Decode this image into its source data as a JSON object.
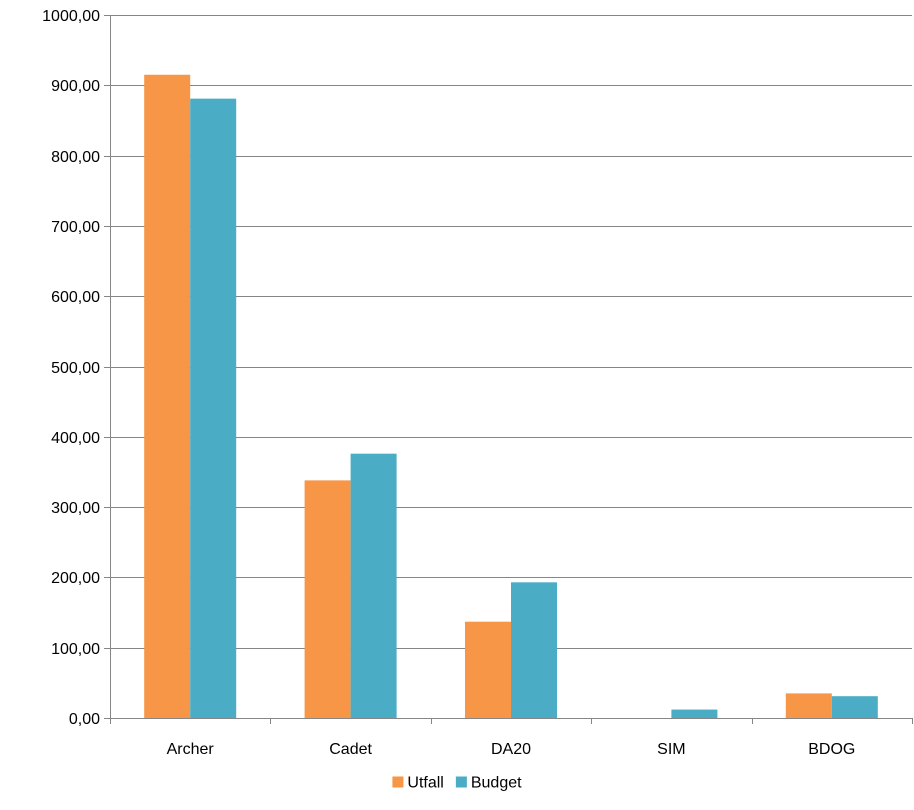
{
  "chart_data": {
    "type": "bar",
    "title": "",
    "xlabel": "",
    "ylabel": "",
    "categories": [
      "Archer",
      "Cadet",
      "DA20",
      "SIM",
      "BDOG"
    ],
    "series": [
      {
        "name": "Utfall",
        "values": [
          915,
          338,
          137,
          0,
          35
        ],
        "color": "#F79646"
      },
      {
        "name": "Budget",
        "values": [
          881,
          376,
          193,
          12,
          31
        ],
        "color": "#4BACC6"
      }
    ],
    "ylim": [
      0,
      1000
    ],
    "y_ticks": [
      "0,00",
      "100,00",
      "200,00",
      "300,00",
      "400,00",
      "500,00",
      "600,00",
      "700,00",
      "800,00",
      "900,00",
      "1000,00"
    ],
    "grid": true,
    "legend_position": "bottom",
    "axis_color": "#868686",
    "grid_color": "#868686"
  }
}
